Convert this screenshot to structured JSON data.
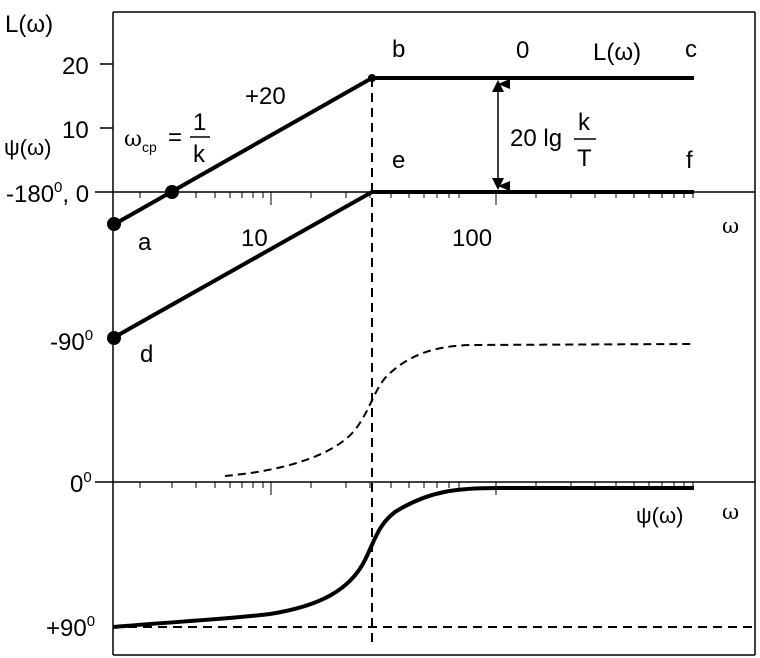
{
  "y_axis": {
    "top_label": "L(ω)",
    "tick_20": "20",
    "tick_10": "10",
    "psi_label": "ψ(ω)",
    "origin_label_main": "-180",
    "origin_label_sup": "0",
    "origin_label_tail": ", 0",
    "minus90_main": "-90",
    "minus90_sup": "0",
    "zero_main": "0",
    "zero_sup": "0",
    "plus90_main": "+90",
    "plus90_sup": "0"
  },
  "x_axis": {
    "tick_10": "10",
    "tick_100": "100",
    "omega_upper": "ω",
    "omega_lower": "ω"
  },
  "annotations": {
    "slope_label": "+20",
    "omega_cp_symbol": "ω",
    "omega_cp_sub": "cp",
    "equals": "=",
    "frac_num": "1",
    "frac_den": "k",
    "gain_prefix": "20 lg",
    "gain_num": "k",
    "gain_den": "T",
    "zero_slope": "0",
    "L_curve_label": "L(ω)",
    "psi_curve_label": "ψ(ω)"
  },
  "points": {
    "a": "a",
    "b": "b",
    "c": "c",
    "d": "d",
    "e": "e",
    "f": "f"
  }
}
